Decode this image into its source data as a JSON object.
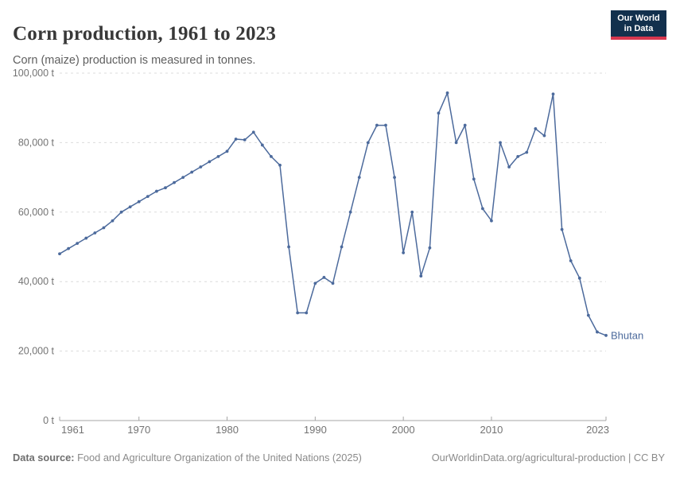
{
  "header": {
    "title": "Corn production, 1961 to 2023",
    "subtitle": "Corn (maize) production is measured in tonnes.",
    "logo": {
      "line1": "Our World",
      "line2": "in Data"
    }
  },
  "chart_data": {
    "type": "line",
    "title": "Corn production, 1961 to 2023",
    "xlabel": "",
    "ylabel": "",
    "unit": "t",
    "ylim": [
      0,
      100000
    ],
    "grid": "horizontal-dashed",
    "legend_position": "end-of-line-label",
    "x_ticks": [
      1961,
      1970,
      1980,
      1990,
      2000,
      2010,
      2023
    ],
    "y_ticks": [
      0,
      20000,
      40000,
      60000,
      80000,
      100000
    ],
    "y_tick_labels": [
      "0 t",
      "20,000 t",
      "40,000 t",
      "60,000 t",
      "80,000 t",
      "100,000 t"
    ],
    "x": [
      1961,
      1962,
      1963,
      1964,
      1965,
      1966,
      1967,
      1968,
      1969,
      1970,
      1971,
      1972,
      1973,
      1974,
      1975,
      1976,
      1977,
      1978,
      1979,
      1980,
      1981,
      1982,
      1983,
      1984,
      1985,
      1986,
      1987,
      1988,
      1989,
      1990,
      1991,
      1992,
      1993,
      1994,
      1995,
      1996,
      1997,
      1998,
      1999,
      2000,
      2001,
      2002,
      2003,
      2004,
      2005,
      2006,
      2007,
      2008,
      2009,
      2010,
      2011,
      2012,
      2013,
      2014,
      2015,
      2016,
      2017,
      2018,
      2019,
      2020,
      2021,
      2022,
      2023
    ],
    "series": [
      {
        "name": "Bhutan",
        "color": "#4c6a9c",
        "values": [
          48000,
          49500,
          51000,
          52500,
          54000,
          55500,
          57500,
          60000,
          61500,
          63000,
          64500,
          66000,
          67000,
          68500,
          70000,
          71500,
          73000,
          74500,
          76000,
          77500,
          81000,
          80800,
          83000,
          79300,
          76000,
          73500,
          50000,
          31000,
          31000,
          39500,
          41200,
          39500,
          50000,
          60000,
          70000,
          80000,
          85000,
          85000,
          70000,
          48300,
          60000,
          41600,
          49700,
          88500,
          94300,
          80000,
          85000,
          69500,
          61000,
          57500,
          80000,
          73000,
          76000,
          77200,
          84000,
          82000,
          94000,
          55000,
          46000,
          41000,
          30300,
          25500,
          24500
        ]
      }
    ]
  },
  "footer": {
    "source_label": "Data source:",
    "source_text": "Food and Agriculture Organization of the United Nations (2025)",
    "credit": "OurWorldinData.org/agricultural-production | CC BY"
  },
  "colors": {
    "line": "#4c6a9c",
    "entity_label": "#4c6a9c",
    "logo_navy": "#12304d",
    "logo_red": "#d7374f",
    "gridline": "#dcdcdc",
    "axis": "#a5a5a5",
    "tick_text": "#737373"
  }
}
